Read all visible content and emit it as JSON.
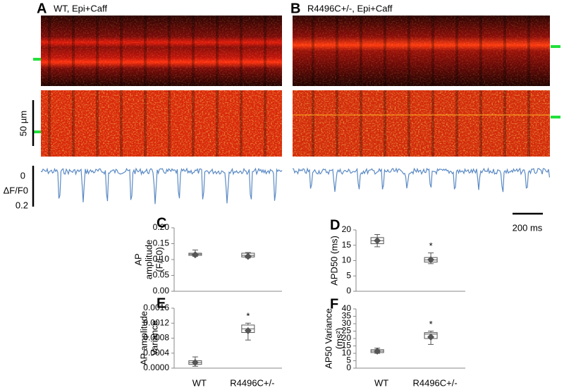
{
  "labels": {
    "panel_a": "A",
    "panel_a_title": "WT, Epi+Caff",
    "panel_b": "B",
    "panel_b_title": "R4496C+/-, Epi+Caff",
    "scale_space": "50 µm",
    "trace_top": "0",
    "trace_unit": "ΔF/F0",
    "trace_bottom": "0.2",
    "scale_time": "200 ms"
  },
  "chart_data": [
    {
      "type": "box",
      "panel": "C",
      "y_label": [
        "AP",
        "amplitude",
        "(F/F0)"
      ],
      "categories": [
        null,
        null
      ],
      "ylim": [
        0,
        0.2
      ],
      "yticks": [
        {
          "value": 0,
          "label": "0.00"
        },
        {
          "value": 0.05,
          "label": "0.05"
        },
        {
          "value": 0.1,
          "label": "0.10"
        },
        {
          "value": 0.15,
          "label": "0.15"
        },
        {
          "value": 0.2,
          "label": "0.20"
        }
      ],
      "boxes": [
        {
          "min": 0.11,
          "q1": 0.113,
          "median": 0.117,
          "q3": 0.12,
          "max": 0.13,
          "mean": 0.115
        },
        {
          "min": 0.105,
          "q1": 0.108,
          "median": 0.113,
          "q3": 0.12,
          "max": 0.122,
          "mean": 0.11
        }
      ]
    },
    {
      "type": "box",
      "panel": "D",
      "y_label": [
        "APD50 (ms)"
      ],
      "categories": [
        null,
        null
      ],
      "annotation": "*",
      "ylim": [
        0,
        20
      ],
      "yticks": [
        0,
        5,
        10,
        15,
        20
      ],
      "boxes": [
        {
          "min": 14.5,
          "q1": 15.5,
          "median": 16.5,
          "q3": 17.5,
          "max": 18.5,
          "mean": 16.5
        },
        {
          "min": 9,
          "q1": 9.5,
          "median": 10.2,
          "q3": 11,
          "max": 12.5,
          "mean": 10.3
        }
      ]
    },
    {
      "type": "box",
      "panel": "E",
      "y_label": [
        "AP amplitude",
        "Variance"
      ],
      "categories": [
        "WT",
        "R4496C+/-"
      ],
      "annotation": "*",
      "ylim": [
        0,
        0.0016
      ],
      "yticks": [
        {
          "value": 0,
          "label": "0.0000"
        },
        {
          "value": 0.0004,
          "label": "0.0004"
        },
        {
          "value": 0.0008,
          "label": "0.0008"
        },
        {
          "value": 0.0012,
          "label": "0.0012"
        },
        {
          "value": 0.0016,
          "label": "0.0016"
        }
      ],
      "boxes": [
        {
          "min": 5e-05,
          "q1": 0.0001,
          "median": 0.00015,
          "q3": 0.0002,
          "max": 0.0003,
          "mean": 0.00015
        },
        {
          "min": 0.00075,
          "q1": 0.00095,
          "median": 0.00105,
          "q3": 0.00115,
          "max": 0.0012,
          "mean": 0.001
        }
      ]
    },
    {
      "type": "box",
      "panel": "F",
      "y_label": [
        "AP50 Variance",
        "(ms²)"
      ],
      "categories": [
        "WT",
        "R4496C+/-"
      ],
      "annotation": "*",
      "ylim": [
        0,
        40
      ],
      "yticks": [
        0,
        5,
        10,
        15,
        20,
        25,
        30,
        35,
        40
      ],
      "boxes": [
        {
          "min": 10,
          "q1": 10.5,
          "median": 11.5,
          "q3": 12.5,
          "max": 13.5,
          "mean": 11.5
        },
        {
          "min": 16,
          "q1": 20,
          "median": 23,
          "q3": 24,
          "max": 25,
          "mean": 21
        }
      ]
    }
  ]
}
